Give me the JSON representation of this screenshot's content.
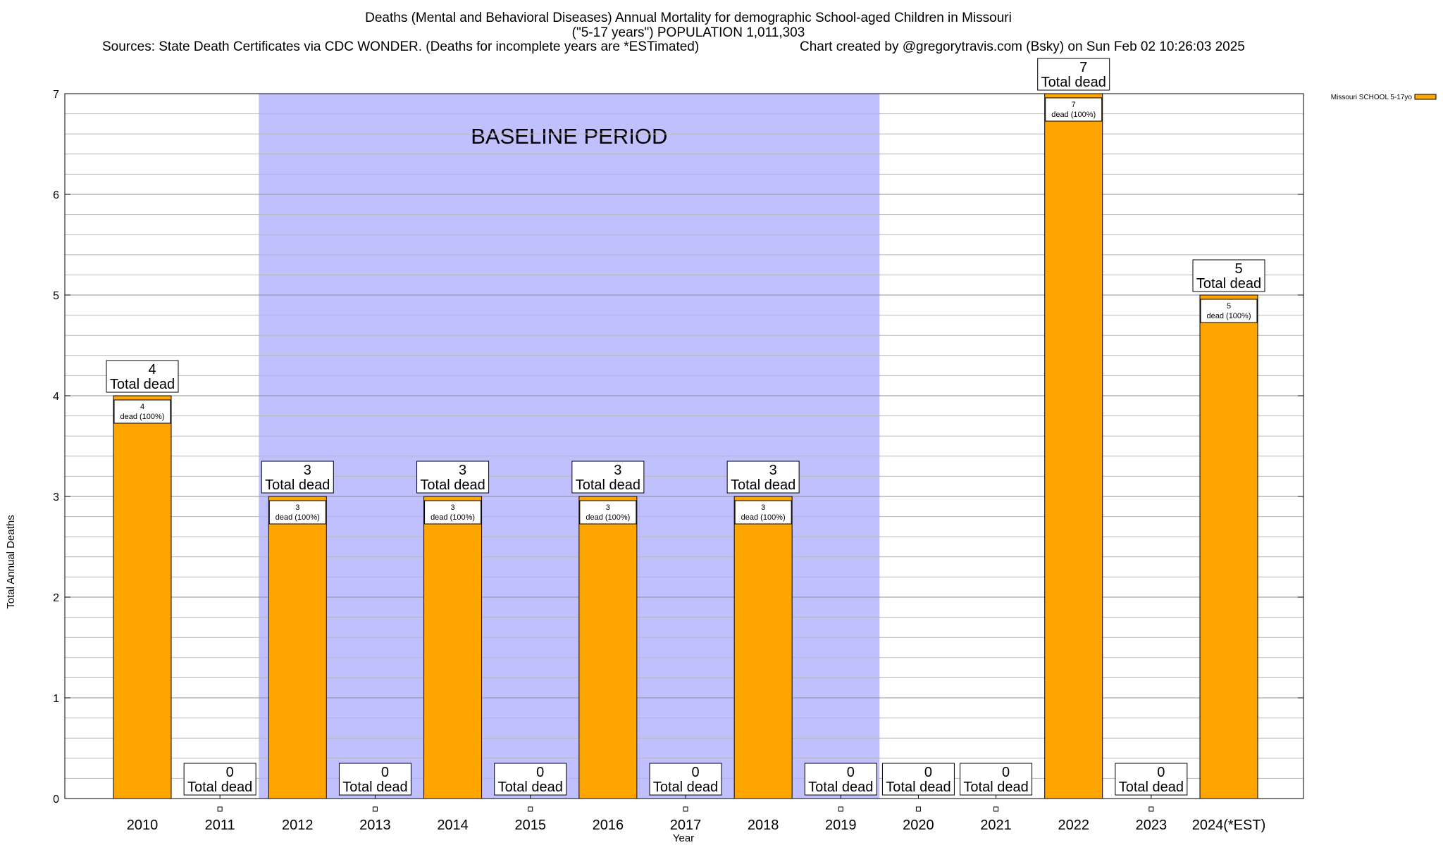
{
  "header": {
    "title_line1": "Deaths (Mental and Behavioral Diseases) Annual Mortality for demographic School-aged Children in Missouri",
    "title_line2": "(\"5-17 years\") POPULATION 1,011,303",
    "sources": "Sources: State Death Certificates via CDC WONDER. (Deaths for incomplete years are *ESTimated)",
    "credit": "Chart created by @gregorytravis.com (Bsky) on Sun Feb 02 10:26:03 2025"
  },
  "chart_data": {
    "type": "bar",
    "xlabel": "Year",
    "ylabel": "Total Annual Deaths",
    "ylim": [
      0,
      7
    ],
    "y_ticks": [
      0,
      1,
      2,
      3,
      4,
      5,
      6,
      7
    ],
    "y_minor_step": 0.2,
    "grid": true,
    "categories": [
      "2010",
      "2011",
      "2012",
      "2013",
      "2014",
      "2015",
      "2016",
      "2017",
      "2018",
      "2019",
      "2020",
      "2021",
      "2022",
      "2023",
      "2024(*EST)"
    ],
    "series": [
      {
        "name": "Missouri SCHOOL 5-17yo",
        "values": [
          4,
          0,
          3,
          0,
          3,
          0,
          3,
          0,
          3,
          0,
          0,
          0,
          7,
          0,
          5
        ],
        "color": "#FFA500"
      }
    ],
    "total_labels": [
      "4",
      "0",
      "3",
      "0",
      "3",
      "0",
      "3",
      "0",
      "3",
      "0",
      "0",
      "0",
      "7",
      "0",
      "5"
    ],
    "total_suffix": "Total dead",
    "inner_suffix": "dead (100%)",
    "baseline": {
      "label": "BASELINE PERIOD",
      "from": "2012",
      "to": "2019",
      "color": "#C0C0FF"
    },
    "legend": {
      "position": "top-right"
    }
  }
}
